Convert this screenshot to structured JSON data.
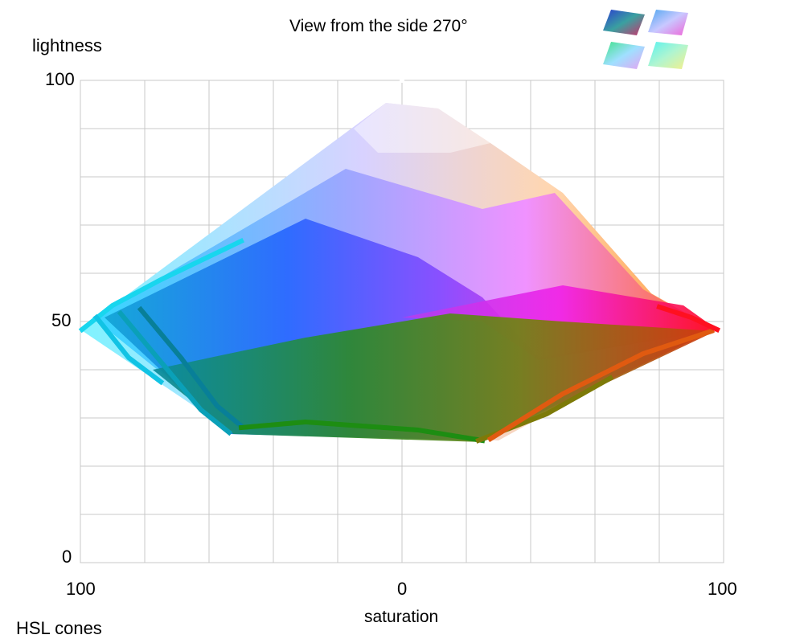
{
  "title": "View from the side 270°",
  "axes": {
    "ylabel": "lightness",
    "xlabel": "saturation",
    "y_ticks": [
      "100",
      "50",
      "0"
    ],
    "x_ticks": [
      "100",
      "0",
      "100"
    ]
  },
  "footer": "HSL cones",
  "view_thumbnails": [
    {
      "name": "view-0",
      "colors": [
        "#2a3ecf",
        "#d0306a"
      ]
    },
    {
      "name": "view-90",
      "colors": [
        "#4da6f0",
        "#f064d8"
      ]
    },
    {
      "name": "view-180",
      "colors": [
        "#3fe28a",
        "#e8a1f2"
      ]
    },
    {
      "name": "view-360",
      "colors": [
        "#57f2f0",
        "#f6f08a"
      ]
    }
  ],
  "colors": {
    "grid": "#c8c8c8",
    "cyan": "#00e5ff",
    "blue": "#1f6cff",
    "violet": "#8c4dff",
    "magenta": "#ff1fe8",
    "red": "#ff0a1e",
    "orange": "#ff8a1f",
    "green": "#1a8f10",
    "olive": "#7a7a00",
    "teal": "#008ca0"
  }
}
